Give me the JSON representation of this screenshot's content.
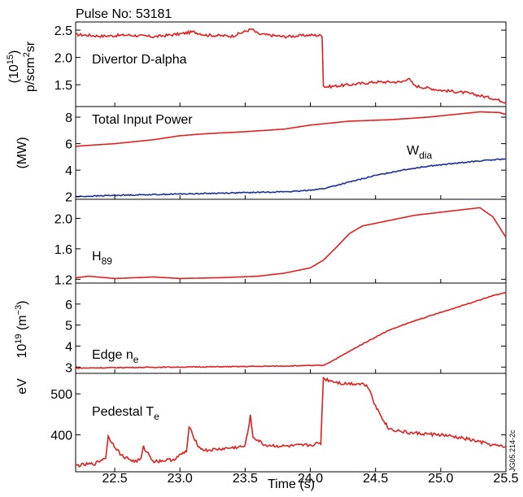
{
  "header": {
    "pulse_label": "Pulse No: 53181"
  },
  "watermark": "JG05.214-2c",
  "colors": {
    "red": "#e02020",
    "blue": "#1f2f9a",
    "frame": "#000000"
  },
  "chart_data": {
    "type": "line",
    "xlabel": "Time (s)",
    "xlim": [
      22.2,
      25.5
    ],
    "xticks": [
      "22.5",
      "23.0",
      "23.5",
      "24.0",
      "24.5",
      "25.0",
      "25.5"
    ],
    "panels": [
      {
        "id": "dalpha",
        "ylabel": [
          "(10",
          "15",
          ")",
          "p/scm",
          "2",
          "sr"
        ],
        "ylim": [
          1.1,
          2.65
        ],
        "yticks": [
          "1.5",
          "2.0",
          "2.5"
        ],
        "annotation": "Divertor D-alpha",
        "series": [
          {
            "color": "#e02020",
            "noise": 0.025,
            "x": [
              22.2,
              22.4,
              22.6,
              22.8,
              23.0,
              23.1,
              23.2,
              23.4,
              23.55,
              23.6,
              23.8,
              24.0,
              24.09,
              24.1,
              24.12,
              24.3,
              24.5,
              24.7,
              24.75,
              24.8,
              25.0,
              25.2,
              25.4,
              25.5
            ],
            "y": [
              2.42,
              2.39,
              2.41,
              2.38,
              2.43,
              2.47,
              2.41,
              2.39,
              2.52,
              2.43,
              2.38,
              2.41,
              2.4,
              1.48,
              1.46,
              1.5,
              1.55,
              1.55,
              1.62,
              1.48,
              1.4,
              1.35,
              1.25,
              1.18
            ]
          }
        ]
      },
      {
        "id": "power",
        "ylabel": [
          "(MW)"
        ],
        "ylim": [
          1.8,
          8.8
        ],
        "yticks": [
          "2",
          "4",
          "6",
          "8"
        ],
        "annotation": "Total Input Power",
        "annotation2": {
          "text": "W",
          "sub": "dia"
        },
        "series": [
          {
            "name": "Total Input Power",
            "color": "#e02020",
            "noise": 0,
            "x": [
              22.2,
              22.5,
              22.8,
              23.0,
              23.2,
              23.5,
              23.8,
              24.0,
              24.3,
              24.6,
              24.9,
              25.1,
              25.3,
              25.45,
              25.5
            ],
            "y": [
              5.8,
              6.0,
              6.3,
              6.6,
              6.75,
              6.9,
              7.1,
              7.4,
              7.7,
              7.8,
              8.0,
              8.2,
              8.4,
              8.35,
              8.2
            ]
          },
          {
            "name": "W_dia",
            "color": "#1f2f9a",
            "noise": 0.04,
            "x": [
              22.2,
              22.5,
              23.0,
              23.5,
              23.9,
              24.1,
              24.3,
              24.5,
              24.7,
              24.9,
              25.1,
              25.3,
              25.5
            ],
            "y": [
              2.0,
              2.1,
              2.2,
              2.3,
              2.4,
              2.6,
              3.1,
              3.6,
              4.0,
              4.3,
              4.5,
              4.7,
              4.85
            ]
          }
        ]
      },
      {
        "id": "h89",
        "ylabel": [],
        "ylim": [
          1.15,
          2.25
        ],
        "yticks": [
          "1.2",
          "1.6",
          "2.0"
        ],
        "annotation": "H",
        "annotation_sub": "89",
        "series": [
          {
            "color": "#e02020",
            "noise": 0,
            "x": [
              22.2,
              22.3,
              22.5,
              22.8,
              23.0,
              23.3,
              23.6,
              23.8,
              24.0,
              24.1,
              24.2,
              24.3,
              24.4,
              24.6,
              24.8,
              25.0,
              25.2,
              25.3,
              25.4,
              25.5
            ],
            "y": [
              1.22,
              1.24,
              1.21,
              1.23,
              1.21,
              1.22,
              1.24,
              1.28,
              1.35,
              1.45,
              1.62,
              1.8,
              1.9,
              1.97,
              2.04,
              2.08,
              2.12,
              2.14,
              2.02,
              1.75
            ]
          }
        ]
      },
      {
        "id": "ne",
        "ylabel": [
          "10",
          "19",
          " (m",
          "−3",
          ")"
        ],
        "ylim": [
          2.7,
          7.0
        ],
        "yticks": [
          "3",
          "4",
          "5",
          "6"
        ],
        "annotation": "Edge n",
        "annotation_sub": "e",
        "series": [
          {
            "color": "#e02020",
            "noise": 0.02,
            "x": [
              22.2,
              22.6,
              23.0,
              23.4,
              23.8,
              24.1,
              24.2,
              24.4,
              24.6,
              24.8,
              25.0,
              25.2,
              25.4,
              25.5
            ],
            "y": [
              2.95,
              2.98,
              3.0,
              3.02,
              3.05,
              3.08,
              3.4,
              4.1,
              4.75,
              5.2,
              5.6,
              6.0,
              6.4,
              6.55
            ]
          }
        ]
      },
      {
        "id": "te",
        "ylabel": [
          "eV"
        ],
        "ylim": [
          310,
          550
        ],
        "yticks": [
          "400",
          "500"
        ],
        "annotation": "Pedestal T",
        "annotation_sub": "e",
        "series": [
          {
            "color": "#e02020",
            "noise": 4,
            "x": [
              22.2,
              22.35,
              22.43,
              22.45,
              22.55,
              22.65,
              22.7,
              22.72,
              22.8,
              22.95,
              23.05,
              23.07,
              23.15,
              23.2,
              23.3,
              23.5,
              23.54,
              23.56,
              23.65,
              23.8,
              24.0,
              24.08,
              24.1,
              24.12,
              24.25,
              24.4,
              24.45,
              24.5,
              24.6,
              24.75,
              25.0,
              25.2,
              25.4,
              25.5
            ],
            "y": [
              325,
              330,
              345,
              395,
              350,
              335,
              340,
              370,
              335,
              340,
              360,
              418,
              368,
              362,
              365,
              372,
              445,
              395,
              375,
              372,
              375,
              380,
              540,
              535,
              525,
              525,
              515,
              470,
              415,
              405,
              400,
              390,
              375,
              370
            ]
          }
        ]
      }
    ]
  }
}
